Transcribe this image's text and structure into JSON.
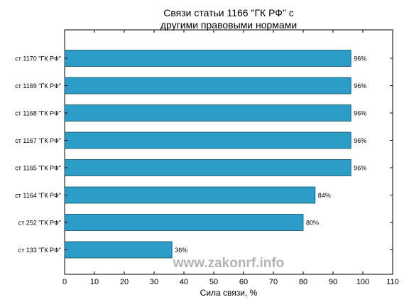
{
  "chart_data": {
    "type": "bar",
    "orientation": "horizontal",
    "title": [
      "Связи статьи 1166 \"ГК РФ\" с",
      "другими правовыми нормами"
    ],
    "xlabel": "Сила связи, %",
    "xlim": [
      0,
      110
    ],
    "xticks": [
      0,
      10,
      20,
      30,
      40,
      50,
      60,
      70,
      80,
      90,
      100,
      110
    ],
    "categories": [
      "ст 1170 \"ГК РФ\"",
      "ст 1169 \"ГК РФ\"",
      "ст 1168 \"ГК РФ\"",
      "ст 1167 \"ГК РФ\"",
      "ст 1165 \"ГК РФ\"",
      "ст 1164 \"ГК РФ\"",
      "ст 252 \"ГК РФ\"",
      "ст 133 \"ГК РФ\""
    ],
    "values": [
      96,
      96,
      96,
      96,
      96,
      84,
      80,
      36
    ],
    "data_labels": [
      "96%",
      "96%",
      "96%",
      "96%",
      "96%",
      "84%",
      "80%",
      "36%"
    ],
    "bar_color": "#2b9dc6",
    "grid": false,
    "legend": "none"
  },
  "watermark": "www.zakonrf.info"
}
